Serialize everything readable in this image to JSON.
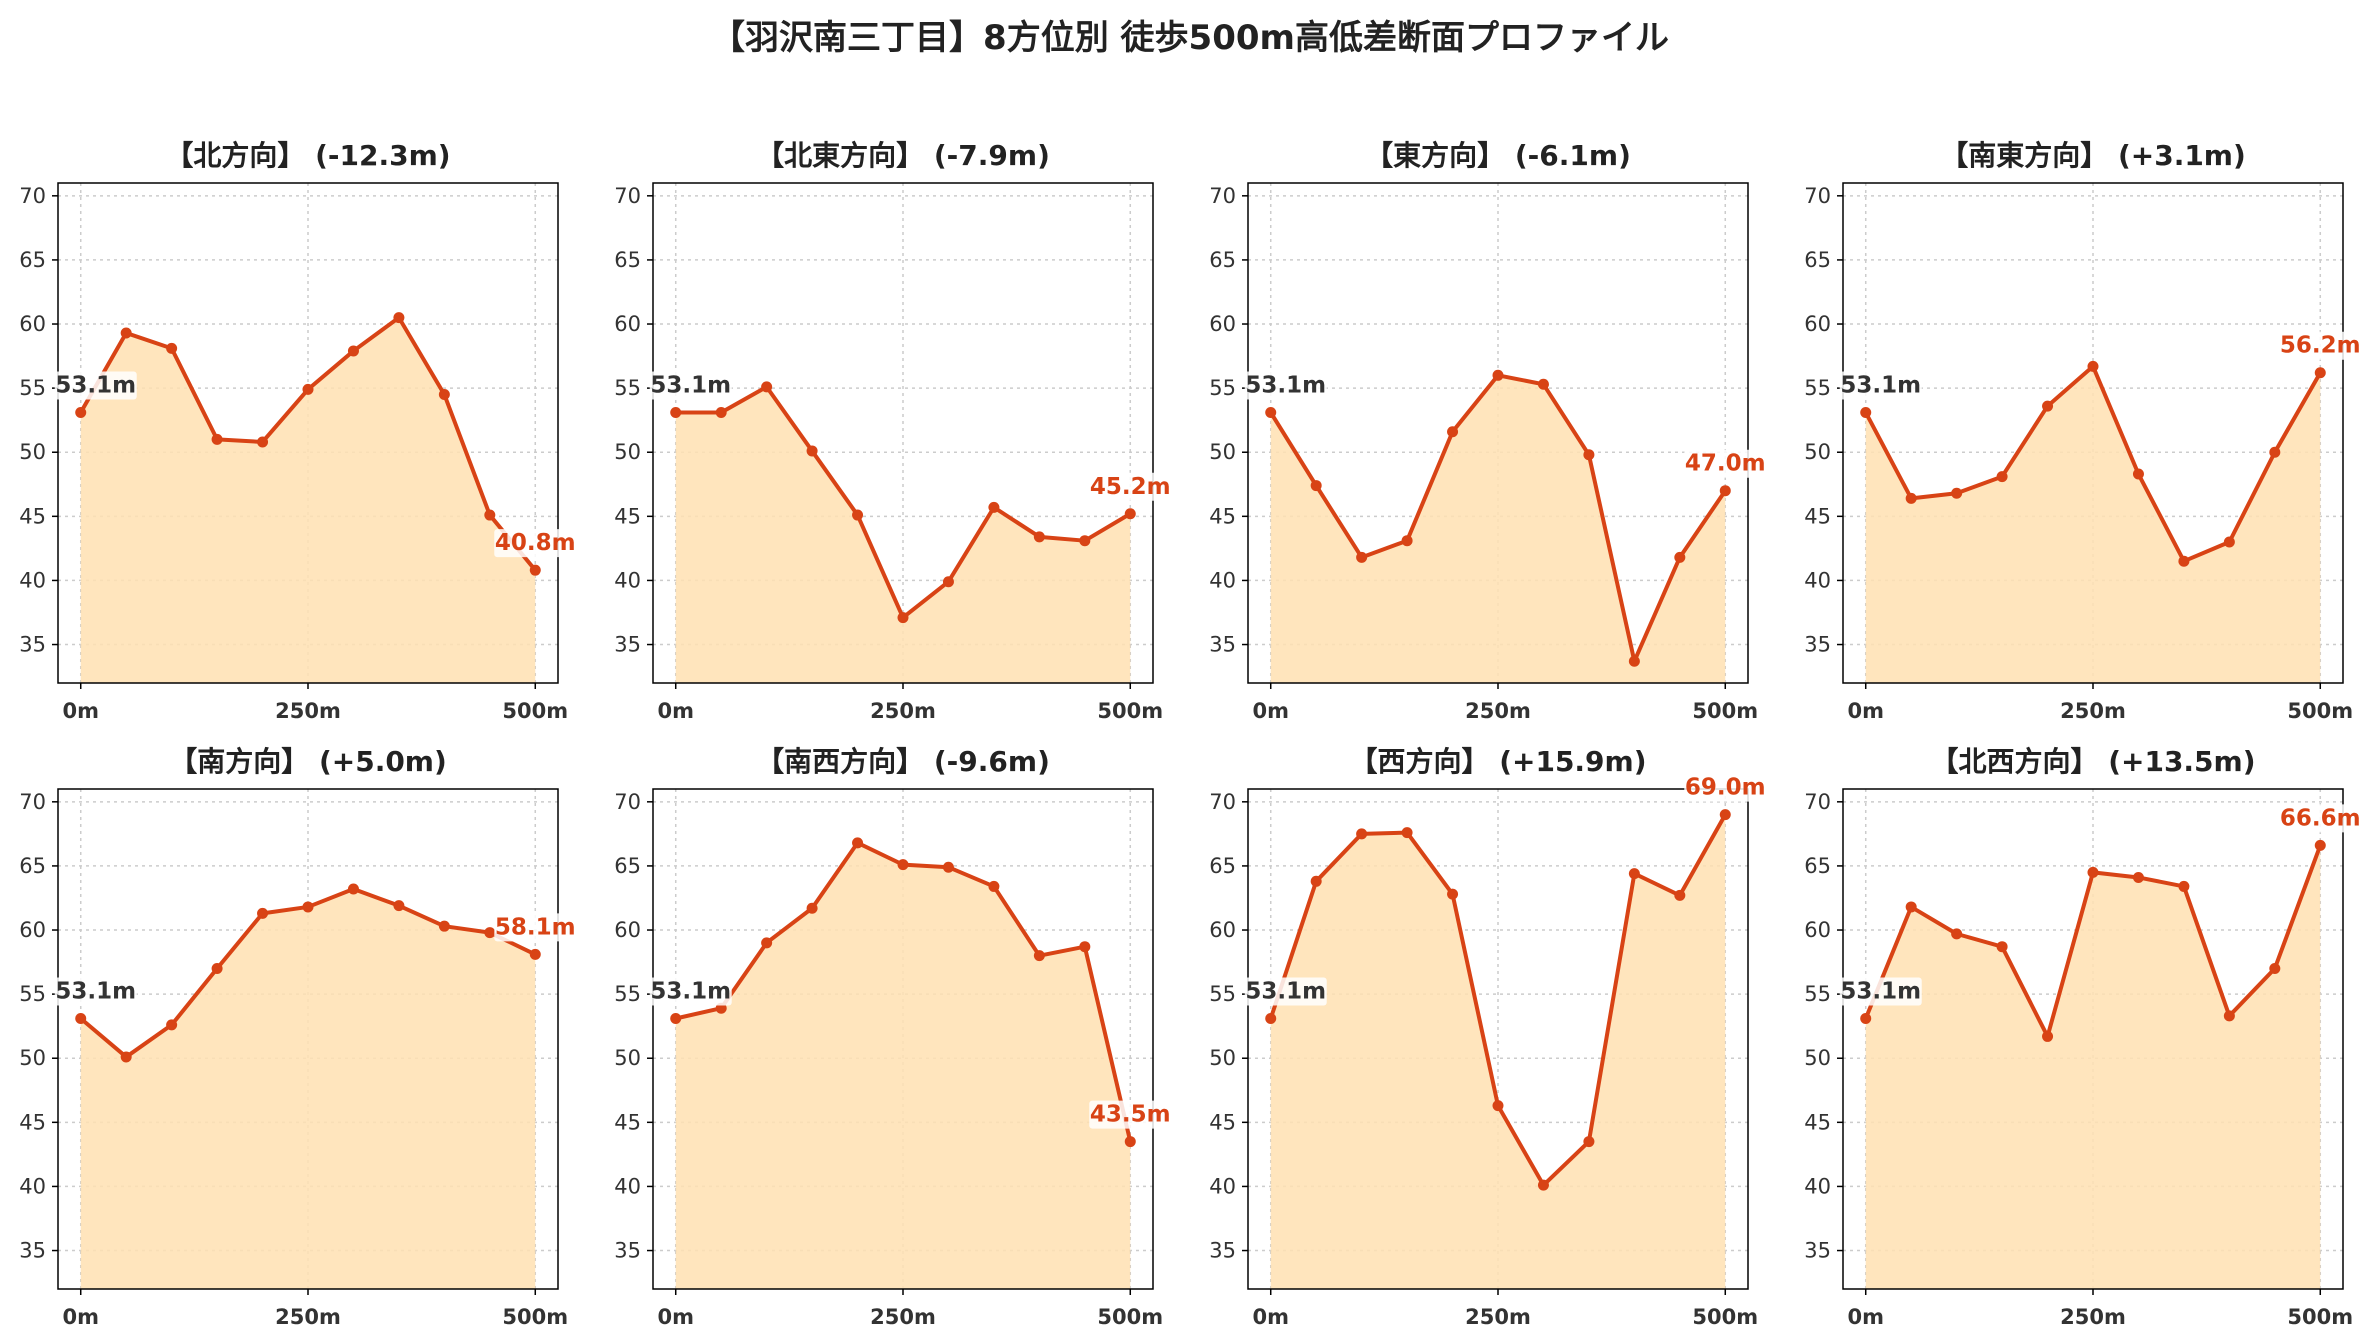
{
  "title": "【羽沢南三丁目】8方位別 徒歩500m高低差断面プロファイル",
  "colors": {
    "line": "#d84315",
    "fill": "#ffe0b2",
    "start_label": "#333333",
    "grid": "#cccccc"
  },
  "chart_data": [
    {
      "type": "line",
      "title": "【北方向】 (-12.3m)",
      "x": [
        0,
        50,
        100,
        150,
        200,
        250,
        300,
        350,
        400,
        450,
        500
      ],
      "values": [
        53.1,
        59.3,
        58.1,
        51.0,
        50.8,
        54.9,
        57.9,
        60.5,
        54.5,
        45.1,
        40.8
      ],
      "start_label": "53.1m",
      "end_label": "40.8m",
      "xticks": [
        "0m",
        "250m",
        "500m"
      ],
      "ylim": [
        32,
        71
      ],
      "yticks": [
        35,
        40,
        45,
        50,
        55,
        60,
        65,
        70
      ],
      "grid": true
    },
    {
      "type": "line",
      "title": "【北東方向】 (-7.9m)",
      "x": [
        0,
        50,
        100,
        150,
        200,
        250,
        300,
        350,
        400,
        450,
        500
      ],
      "values": [
        53.1,
        53.1,
        55.1,
        50.1,
        45.1,
        37.1,
        39.9,
        45.7,
        43.4,
        43.1,
        45.2
      ],
      "start_label": "53.1m",
      "end_label": "45.2m",
      "xticks": [
        "0m",
        "250m",
        "500m"
      ],
      "ylim": [
        32,
        71
      ],
      "yticks": [
        35,
        40,
        45,
        50,
        55,
        60,
        65,
        70
      ],
      "grid": true
    },
    {
      "type": "line",
      "title": "【東方向】 (-6.1m)",
      "x": [
        0,
        50,
        100,
        150,
        200,
        250,
        300,
        350,
        400,
        450,
        500
      ],
      "values": [
        53.1,
        47.4,
        41.8,
        43.1,
        51.6,
        56.0,
        55.3,
        49.8,
        33.7,
        41.8,
        47.0
      ],
      "start_label": "53.1m",
      "end_label": "47.0m",
      "xticks": [
        "0m",
        "250m",
        "500m"
      ],
      "ylim": [
        32,
        71
      ],
      "yticks": [
        35,
        40,
        45,
        50,
        55,
        60,
        65,
        70
      ],
      "grid": true
    },
    {
      "type": "line",
      "title": "【南東方向】 (+3.1m)",
      "x": [
        0,
        50,
        100,
        150,
        200,
        250,
        300,
        350,
        400,
        450,
        500
      ],
      "values": [
        53.1,
        46.4,
        46.8,
        48.1,
        53.6,
        56.7,
        48.3,
        41.5,
        43.0,
        50.0,
        56.2
      ],
      "start_label": "53.1m",
      "end_label": "56.2m",
      "xticks": [
        "0m",
        "250m",
        "500m"
      ],
      "ylim": [
        32,
        71
      ],
      "yticks": [
        35,
        40,
        45,
        50,
        55,
        60,
        65,
        70
      ],
      "grid": true
    },
    {
      "type": "line",
      "title": "【南方向】 (+5.0m)",
      "x": [
        0,
        50,
        100,
        150,
        200,
        250,
        300,
        350,
        400,
        450,
        500
      ],
      "values": [
        53.1,
        50.1,
        52.6,
        57.0,
        61.3,
        61.8,
        63.2,
        61.9,
        60.3,
        59.8,
        58.1
      ],
      "start_label": "53.1m",
      "end_label": "58.1m",
      "xticks": [
        "0m",
        "250m",
        "500m"
      ],
      "ylim": [
        32,
        71
      ],
      "yticks": [
        35,
        40,
        45,
        50,
        55,
        60,
        65,
        70
      ],
      "grid": true
    },
    {
      "type": "line",
      "title": "【南西方向】 (-9.6m)",
      "x": [
        0,
        50,
        100,
        150,
        200,
        250,
        300,
        350,
        400,
        450,
        500
      ],
      "values": [
        53.1,
        53.9,
        59.0,
        61.7,
        66.8,
        65.1,
        64.9,
        63.4,
        58.0,
        58.7,
        43.5
      ],
      "start_label": "53.1m",
      "end_label": "43.5m",
      "xticks": [
        "0m",
        "250m",
        "500m"
      ],
      "ylim": [
        32,
        71
      ],
      "yticks": [
        35,
        40,
        45,
        50,
        55,
        60,
        65,
        70
      ],
      "grid": true
    },
    {
      "type": "line",
      "title": "【西方向】 (+15.9m)",
      "x": [
        0,
        50,
        100,
        150,
        200,
        250,
        300,
        350,
        400,
        450,
        500
      ],
      "values": [
        53.1,
        63.8,
        67.5,
        67.6,
        62.8,
        46.3,
        40.1,
        43.5,
        64.4,
        62.7,
        69.0
      ],
      "start_label": "53.1m",
      "end_label": "69.0m",
      "xticks": [
        "0m",
        "250m",
        "500m"
      ],
      "ylim": [
        32,
        71
      ],
      "yticks": [
        35,
        40,
        45,
        50,
        55,
        60,
        65,
        70
      ],
      "grid": true
    },
    {
      "type": "line",
      "title": "【北西方向】 (+13.5m)",
      "x": [
        0,
        50,
        100,
        150,
        200,
        250,
        300,
        350,
        400,
        450,
        500
      ],
      "values": [
        53.1,
        61.8,
        59.7,
        58.7,
        51.7,
        64.5,
        64.1,
        63.4,
        53.3,
        57.0,
        66.6
      ],
      "start_label": "53.1m",
      "end_label": "66.6m",
      "xticks": [
        "0m",
        "250m",
        "500m"
      ],
      "ylim": [
        32,
        71
      ],
      "yticks": [
        35,
        40,
        45,
        50,
        55,
        60,
        65,
        70
      ],
      "grid": true
    }
  ]
}
